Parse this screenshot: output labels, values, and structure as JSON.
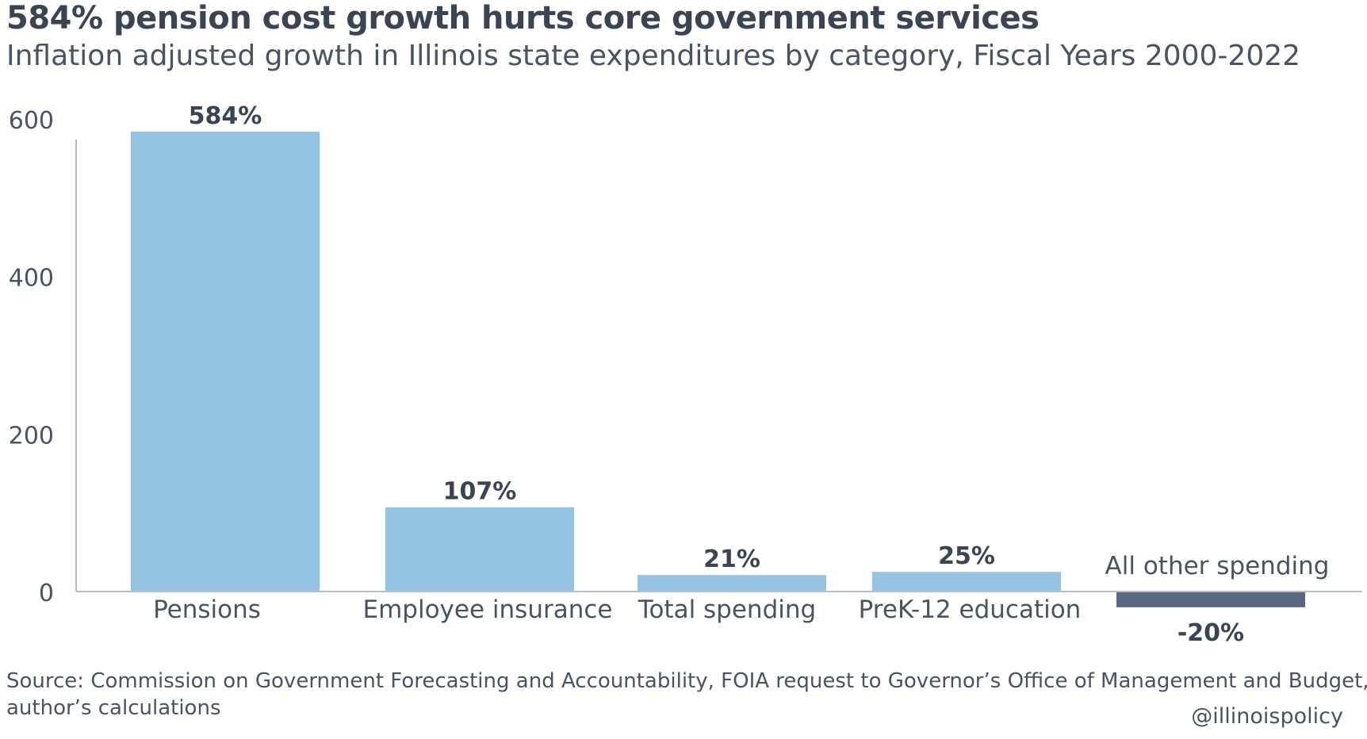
{
  "header": {
    "title": "584%  pension cost growth hurts core government services",
    "subtitle": "Inflation adjusted growth in Illinois state expenditures by category, Fiscal Years 2000-2022"
  },
  "chart_data": {
    "type": "bar",
    "title": "584%  pension cost growth hurts core government services",
    "subtitle": "Inflation adjusted growth in Illinois state expenditures by category, Fiscal Years 2000-2022",
    "categories": [
      "Pensions",
      "Employee insurance",
      "Total spending",
      "PreK-12 education",
      "All other spending"
    ],
    "values": [
      584,
      107,
      21,
      25,
      -20
    ],
    "data_labels": [
      "584%",
      "107%",
      "21%",
      "25%",
      "-20%"
    ],
    "xlabel": "",
    "ylabel": "",
    "yticks": [
      "0",
      "200",
      "400",
      "600"
    ],
    "ytick_values": [
      0,
      200,
      400,
      600
    ],
    "ylim": [
      -20,
      600
    ],
    "grid": false,
    "colors": {
      "positive": "#94c4e2",
      "negative": "#5a6781",
      "axis": "#b9bec6",
      "text": "#3b4452"
    }
  },
  "footer": {
    "source_line1": "Source: Commission on Government Forecasting and Accountability, FOIA request to Governor’s Office of Management and Budget,",
    "source_line2": "author’s calculations",
    "handle": "@illinoispolicy"
  }
}
